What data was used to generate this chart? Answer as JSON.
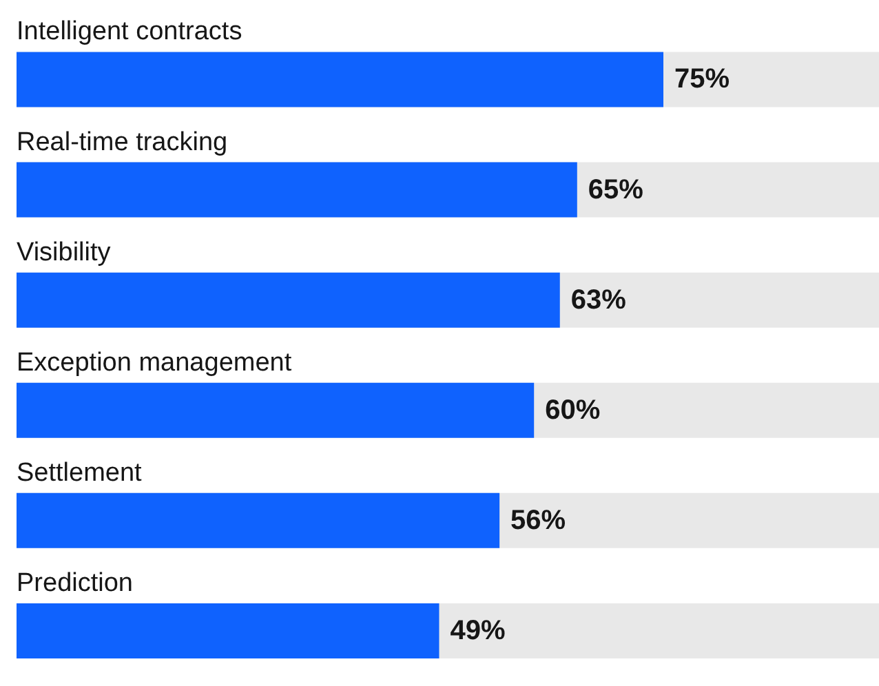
{
  "chart_data": {
    "type": "bar",
    "orientation": "horizontal",
    "categories": [
      "Intelligent contracts",
      "Real-time tracking",
      "Visibility",
      "Exception management",
      "Settlement",
      "Prediction"
    ],
    "values": [
      75,
      65,
      63,
      60,
      56,
      49
    ],
    "value_labels": [
      "75%",
      "65%",
      "63%",
      "60%",
      "56%",
      "49%"
    ],
    "color": "#0f62fe",
    "xlim": [
      0,
      100
    ],
    "tick_labels": "y"
  }
}
